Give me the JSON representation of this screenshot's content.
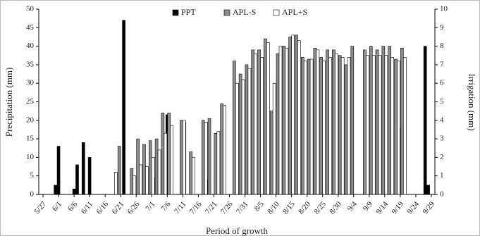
{
  "chart_data": {
    "type": "bar",
    "x_label": "Period of growth",
    "y_label": "Precipitation (mm)",
    "y2_label": "Irrigation (mm)",
    "xlim": [
      "5/27",
      "9/29"
    ],
    "xticks": [
      "5/27",
      "6/1",
      "6/6",
      "6/11",
      "6/16",
      "6/21",
      "6/26",
      "7/1",
      "7/6",
      "7/11",
      "7/16",
      "7/21",
      "7/26",
      "7/31",
      "8/5",
      "8/10",
      "8/15",
      "8/20",
      "8/25",
      "8/30",
      "9/4",
      "9/9",
      "9/14",
      "9/19",
      "9/24",
      "9/29"
    ],
    "ylim": [
      0,
      50
    ],
    "yticks": [
      0,
      5,
      10,
      15,
      20,
      25,
      30,
      35,
      40,
      45,
      50
    ],
    "y2lim": [
      0,
      10
    ],
    "y2ticks": [
      0,
      1,
      2,
      3,
      4,
      5,
      6,
      7,
      8,
      9,
      10
    ],
    "legend": "top",
    "series": [
      {
        "name": "PPT",
        "color": "#000000",
        "axis": "y",
        "x": [
          "5/31",
          "6/1",
          "6/6",
          "6/7",
          "6/9",
          "6/11",
          "6/22",
          "6/25",
          "7/2",
          "7/6",
          "7/19",
          "8/5",
          "9/19",
          "9/27",
          "9/28"
        ],
        "values": [
          2.5,
          13,
          1.5,
          8,
          14,
          10,
          47,
          4.5,
          4.5,
          21.5,
          4,
          12,
          18,
          40,
          2.5
        ]
      },
      {
        "name": "APL-S",
        "color": "#8c8c8c",
        "axis": "y2",
        "x": [
          "6/21",
          "6/25",
          "6/27",
          "6/29",
          "7/1",
          "7/3",
          "7/5",
          "7/7",
          "7/11",
          "7/12",
          "7/14",
          "7/18",
          "7/20",
          "7/22",
          "7/24",
          "7/28",
          "7/30",
          "8/1",
          "8/3",
          "8/5",
          "8/7",
          "8/9",
          "8/11",
          "8/13",
          "8/15",
          "8/17",
          "8/19",
          "8/21",
          "8/23",
          "8/25",
          "8/27",
          "8/29",
          "8/31",
          "9/2",
          "9/4",
          "9/8",
          "9/10",
          "9/12",
          "9/14",
          "9/16",
          "9/18",
          "9/20"
        ],
        "values": [
          2.6,
          1.4,
          3.0,
          2.7,
          2.9,
          3.0,
          4.4,
          4.4,
          4.0,
          3.9,
          2.3,
          4.0,
          4.1,
          3.3,
          4.9,
          7.2,
          6.5,
          7.0,
          7.8,
          7.8,
          8.4,
          4.5,
          7.6,
          8.0,
          8.5,
          8.6,
          7.4,
          7.3,
          7.9,
          7.4,
          7.8,
          7.8,
          7.5,
          7.0,
          8.0,
          7.8,
          8.0,
          7.8,
          8.0,
          8.0,
          7.3,
          7.9
        ]
      },
      {
        "name": "APL+S",
        "color": "#ffffff",
        "axis": "y2",
        "x": [
          "6/19",
          "6/25",
          "6/27",
          "6/29",
          "7/1",
          "7/3",
          "7/5",
          "7/7",
          "7/11",
          "7/14",
          "7/18",
          "7/22",
          "7/24",
          "7/28",
          "7/30",
          "8/1",
          "8/3",
          "8/5",
          "8/7",
          "8/9",
          "8/11",
          "8/13",
          "8/15",
          "8/17",
          "8/19",
          "8/21",
          "8/23",
          "8/25",
          "8/27",
          "8/29",
          "8/31",
          "9/2",
          "9/8",
          "9/10",
          "9/12",
          "9/14",
          "9/16",
          "9/18",
          "9/20"
        ],
        "values": [
          1.2,
          1.0,
          1.6,
          1.5,
          2.0,
          2.4,
          3.3,
          3.7,
          4.0,
          2.0,
          3.9,
          3.4,
          4.8,
          6.0,
          6.2,
          6.8,
          7.6,
          7.4,
          8.2,
          6.0,
          8.0,
          7.9,
          8.6,
          8.3,
          7.2,
          7.3,
          7.8,
          7.2,
          7.4,
          7.6,
          7.4,
          7.4,
          7.5,
          7.5,
          7.5,
          7.5,
          7.4,
          7.2,
          7.4
        ]
      }
    ]
  }
}
